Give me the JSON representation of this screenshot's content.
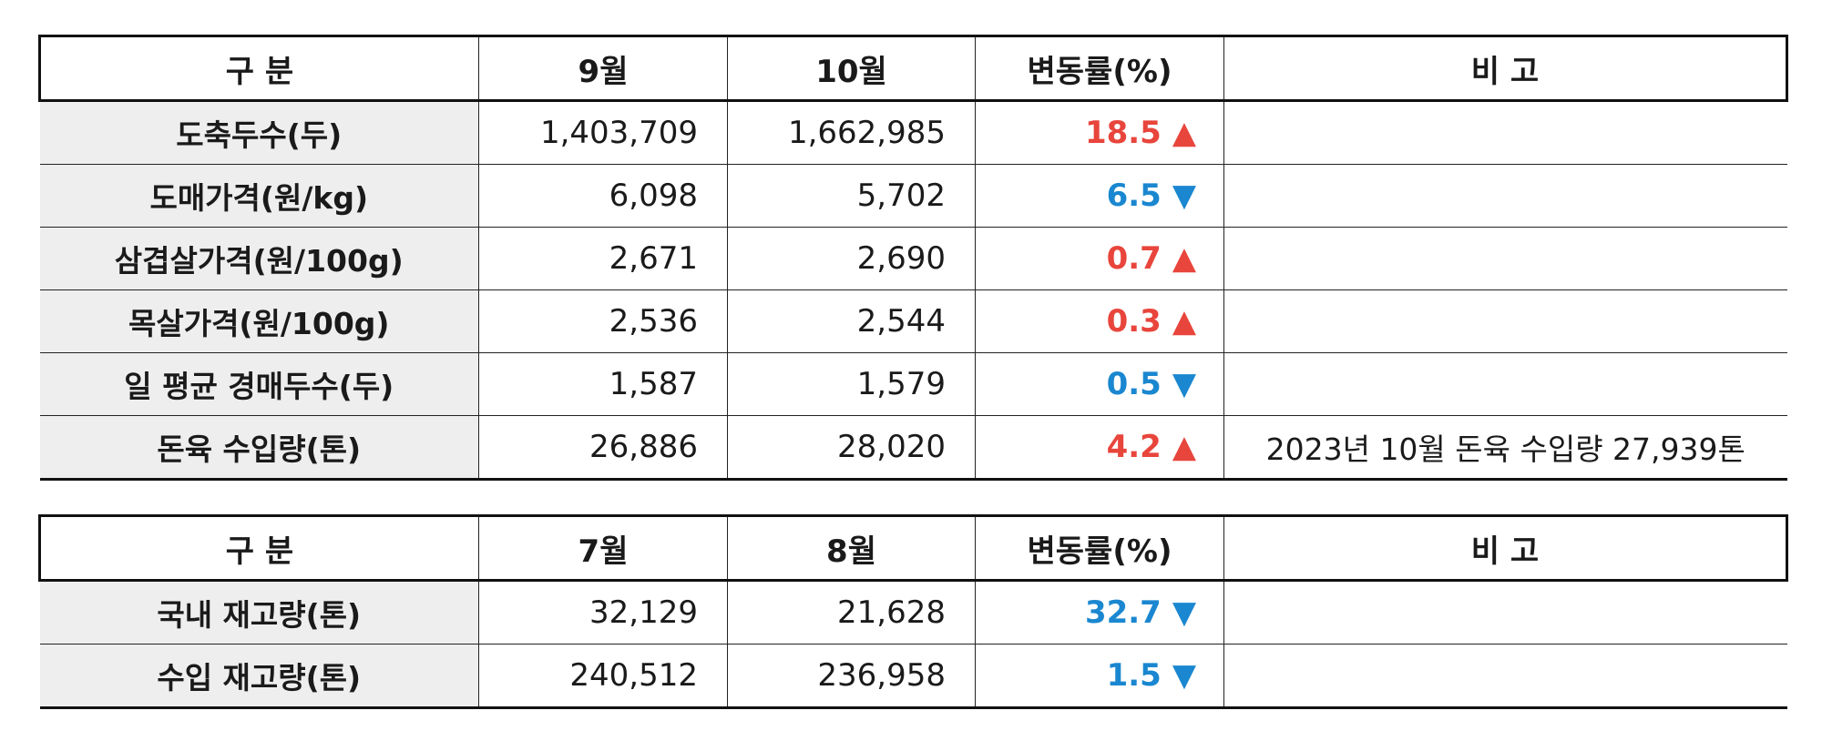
{
  "colors": {
    "up": "#e8453c",
    "down": "#1a87d0",
    "label_bg": "#eeeeee"
  },
  "table1": {
    "headers": [
      "구 분",
      "9월",
      "10월",
      "변동률(%)",
      "비 고"
    ],
    "rows": [
      {
        "label": "도축두수(두)",
        "v1": "1,403,709",
        "v2": "1,662,985",
        "rate": "18.5",
        "dir": "up",
        "arrow": "▲",
        "note": ""
      },
      {
        "label": "도매가격(원/kg)",
        "v1": "6,098",
        "v2": "5,702",
        "rate": "6.5",
        "dir": "down",
        "arrow": "▼",
        "note": ""
      },
      {
        "label": "삼겹살가격(원/100g)",
        "v1": "2,671",
        "v2": "2,690",
        "rate": "0.7",
        "dir": "up",
        "arrow": "▲",
        "note": ""
      },
      {
        "label": "목살가격(원/100g)",
        "v1": "2,536",
        "v2": "2,544",
        "rate": "0.3",
        "dir": "up",
        "arrow": "▲",
        "note": ""
      },
      {
        "label": "일 평균 경매두수(두)",
        "v1": "1,587",
        "v2": "1,579",
        "rate": "0.5",
        "dir": "down",
        "arrow": "▼",
        "note": ""
      },
      {
        "label": "돈육 수입량(톤)",
        "v1": "26,886",
        "v2": "28,020",
        "rate": "4.2",
        "dir": "up",
        "arrow": "▲",
        "note": "2023년 10월 돈육 수입량 27,939톤"
      }
    ]
  },
  "table2": {
    "headers": [
      "구 분",
      "7월",
      "8월",
      "변동률(%)",
      "비 고"
    ],
    "rows": [
      {
        "label": "국내 재고량(톤)",
        "v1": "32,129",
        "v2": "21,628",
        "rate": "32.7",
        "dir": "down",
        "arrow": "▼",
        "note": ""
      },
      {
        "label": "수입 재고량(톤)",
        "v1": "240,512",
        "v2": "236,958",
        "rate": "1.5",
        "dir": "down",
        "arrow": "▼",
        "note": ""
      }
    ]
  }
}
